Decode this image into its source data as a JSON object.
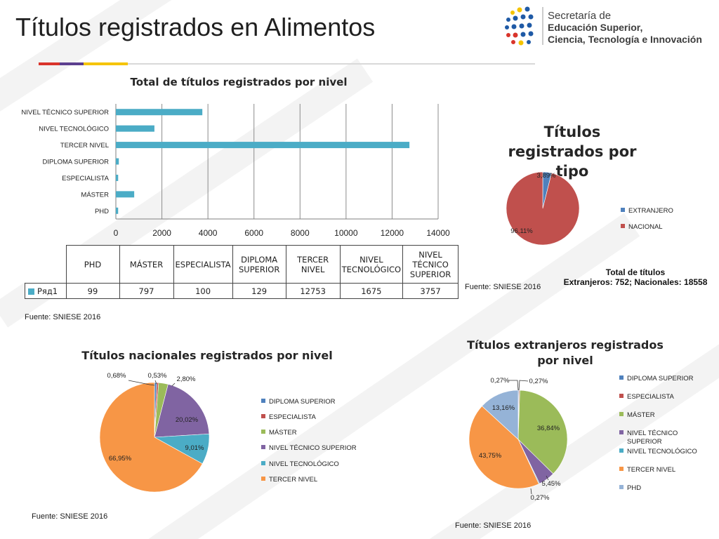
{
  "page": {
    "title": "Títulos registrados en Alimentos",
    "logo": {
      "line1": "Secretaría de",
      "line2": "Educación Superior,",
      "line3": "Ciencia, Tecnología e Innovación"
    },
    "colors": {
      "stripe_red": "#d9342b",
      "stripe_purple": "#5c3f8f",
      "stripe_yellow": "#f5c400",
      "bar": "#4bacc6"
    }
  },
  "chart_data": [
    {
      "type": "bar",
      "orientation": "horizontal",
      "title": "Total de títulos registrados por nivel",
      "categories": [
        "NIVEL TÉCNICO SUPERIOR",
        "NIVEL TECNOLÓGICO",
        "TERCER NIVEL",
        "DIPLOMA SUPERIOR",
        "ESPECIALISTA",
        "MÁSTER",
        "PHD"
      ],
      "values": [
        3757,
        1675,
        12753,
        129,
        100,
        797,
        99
      ],
      "xlim": [
        0,
        14000
      ],
      "xticks": [
        "0",
        "2000",
        "4000",
        "6000",
        "8000",
        "10000",
        "12000",
        "14000"
      ],
      "grid": true,
      "data_table": {
        "headers": [
          "PHD",
          "MÁSTER",
          "ESPECIALISTA",
          "DIPLOMA SUPERIOR",
          "TERCER NIVEL",
          "NIVEL TECNOLÓGICO",
          "NIVEL TÉCNICO SUPERIOR"
        ],
        "series_name": "Ряд1",
        "values": [
          "99",
          "797",
          "100",
          "129",
          "12753",
          "1675",
          "3757"
        ]
      },
      "source": "Fuente: SNIESE 2016"
    },
    {
      "type": "pie",
      "title": "Títulos registrados por tipo",
      "labels": [
        "EXTRANJERO",
        "NACIONAL"
      ],
      "values": [
        3.89,
        96.11
      ],
      "value_labels": [
        "3,89%",
        "96,11%"
      ],
      "colors": [
        "#4f81bd",
        "#c0504d"
      ],
      "legend": "right",
      "source": "Fuente: SNIESE 2016",
      "note": {
        "line1": "Total de títulos",
        "line2": "Extranjeros: 752; Nacionales: 18558"
      }
    },
    {
      "type": "pie",
      "title": "Títulos nacionales registrados por nivel",
      "labels": [
        "DIPLOMA SUPERIOR",
        "ESPECIALISTA",
        "MÁSTER",
        "NIVEL TÉCNICO SUPERIOR",
        "NIVEL TECNOLÓGICO",
        "TERCER NIVEL"
      ],
      "values": [
        0.68,
        0.53,
        2.8,
        20.02,
        9.01,
        66.95
      ],
      "value_labels": [
        "0,68%",
        "0,53%",
        "2,80%",
        "20,02%",
        "9,01%",
        "66,95%"
      ],
      "colors": [
        "#4f81bd",
        "#c0504d",
        "#9bbb59",
        "#8064a2",
        "#4bacc6",
        "#f79646"
      ],
      "legend": "right",
      "source": "Fuente: SNIESE 2016"
    },
    {
      "type": "pie",
      "title": "Títulos extranjeros registrados por nivel",
      "labels": [
        "DIPLOMA SUPERIOR",
        "ESPECIALISTA",
        "MÁSTER",
        "NIVEL TÉCNICO SUPERIOR",
        "NIVEL TECNOLÓGICO",
        "TERCER NIVEL",
        "PHD"
      ],
      "values": [
        0.27,
        0.27,
        36.84,
        5.45,
        0.27,
        43.75,
        13.16
      ],
      "value_labels": [
        "0,27%",
        "0,27%",
        "36,84%",
        "5,45%",
        "0,27%",
        "43,75%",
        "13,16%"
      ],
      "colors": [
        "#4f81bd",
        "#c0504d",
        "#9bbb59",
        "#8064a2",
        "#4bacc6",
        "#f79646",
        "#95b3d7"
      ],
      "legend": "right",
      "source": "Fuente: SNIESE 2016"
    }
  ]
}
